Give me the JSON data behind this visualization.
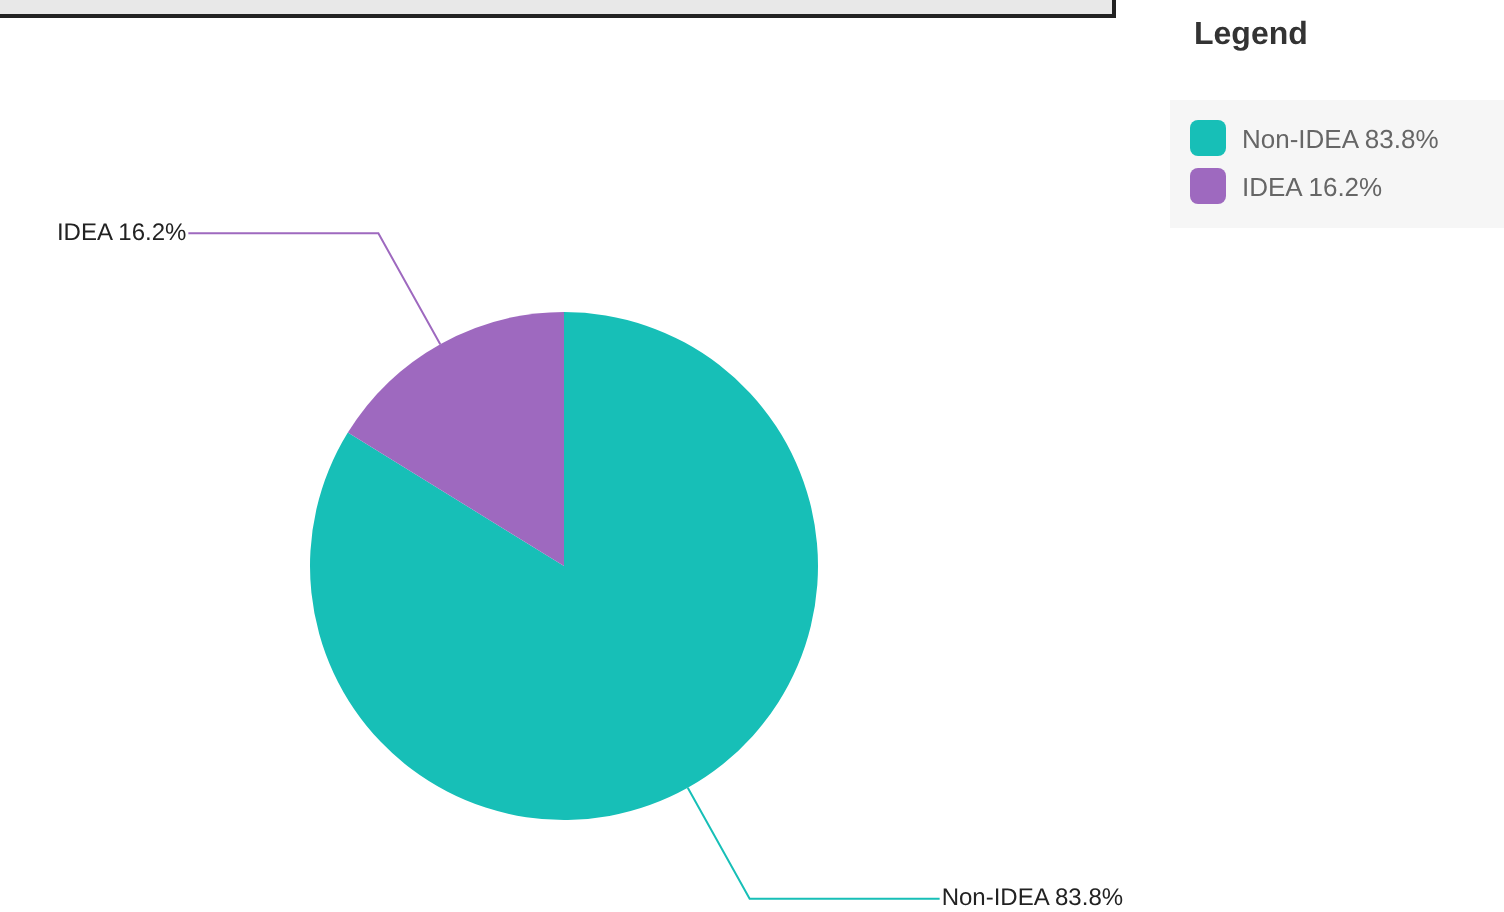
{
  "chart_data": {
    "type": "pie",
    "legend_title": "Legend",
    "legend": "top right",
    "data_labels": true,
    "categories": [
      "Non-IDEA",
      "IDEA"
    ],
    "values": [
      83.8,
      16.2
    ],
    "value_labels": [
      "83.8%",
      "16.2%"
    ],
    "colors": [
      "#17bfb7",
      "#9e69bf"
    ]
  }
}
